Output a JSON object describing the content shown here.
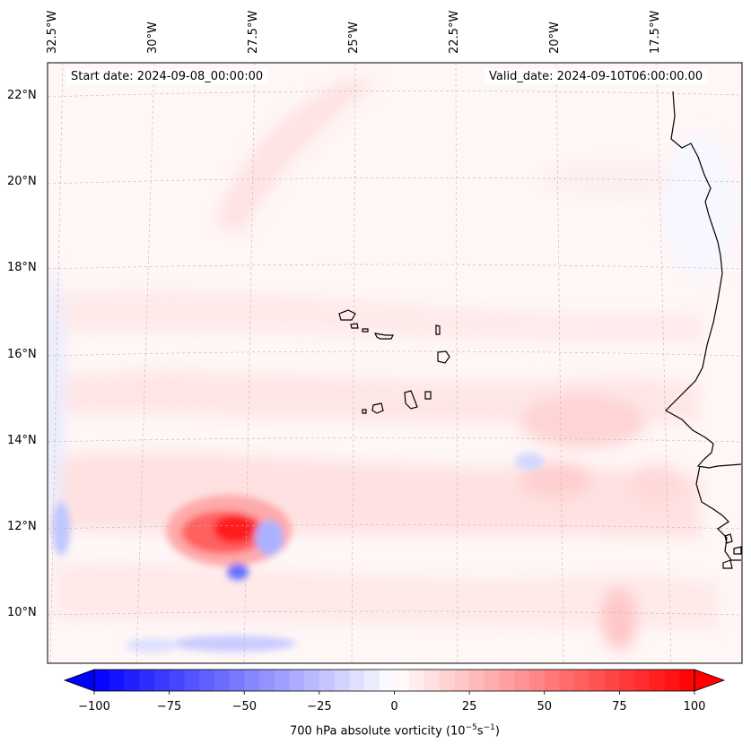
{
  "header": {
    "start_date": "Start date: 2024-09-08_00:00:00",
    "valid_date": "Valid_date: 2024-09-10T06:00:00.00"
  },
  "map": {
    "lon_labels": [
      "32.5°W",
      "30°W",
      "27.5°W",
      "25°W",
      "22.5°W",
      "20°W",
      "17.5°W"
    ],
    "lat_labels": [
      "22°N",
      "20°N",
      "18°N",
      "16°N",
      "14°N",
      "12°N",
      "10°N"
    ],
    "lon_range": [
      -33,
      -16.5
    ],
    "lat_range": [
      9,
      22.8
    ]
  },
  "colorbar": {
    "ticks": [
      "−100",
      "−75",
      "−50",
      "−25",
      "0",
      "25",
      "50",
      "75",
      "100"
    ],
    "min": -100,
    "max": 100,
    "step": 5,
    "label_prefix": "700 hPa absolute vorticity (10",
    "label_exp1": "−5",
    "label_mid": "s",
    "label_exp2": "−1",
    "label_suffix": ")",
    "extend": "both"
  },
  "colors": {
    "negative": "#0000ff",
    "positive": "#ff0000",
    "neutral": "#ffffff",
    "coast": "#000000"
  }
}
